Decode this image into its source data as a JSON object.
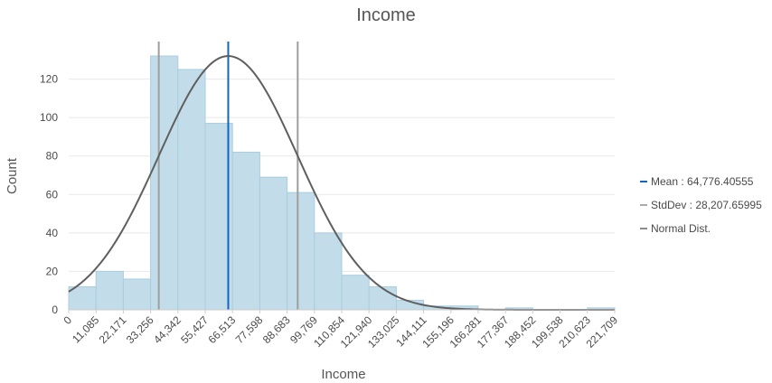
{
  "chart_data": {
    "type": "bar",
    "title": "Income",
    "xlabel": "Income",
    "ylabel": "Count",
    "xlim": [
      0,
      221709
    ],
    "ylim": [
      0,
      140
    ],
    "y_ticks": [
      0,
      20,
      40,
      60,
      80,
      100,
      120
    ],
    "x_tick_labels": [
      "0",
      "11,085",
      "22,171",
      "33,256",
      "44,342",
      "55,427",
      "66,513",
      "77,598",
      "88,683",
      "99,769",
      "110,854",
      "121,940",
      "133,025",
      "144,111",
      "155,196",
      "166,281",
      "177,367",
      "188,452",
      "199,538",
      "210,623",
      "221,709"
    ],
    "bin_width": 11085.45,
    "values": [
      12,
      20,
      16,
      132,
      125,
      97,
      82,
      69,
      61,
      40,
      18,
      12,
      5,
      2,
      2,
      0,
      1,
      0,
      0,
      1
    ],
    "mean": 64776.40555,
    "stddev": 28207.65995,
    "stddev_lines": [
      36568.7456,
      92984.0655
    ],
    "normal_peak": 132,
    "legend_position": "right",
    "grid": true,
    "legend": [
      {
        "label": "Mean : 64,776.40555",
        "color": "#1565c0"
      },
      {
        "label": "StdDev : 28,207.65995",
        "color": "#aaaaaa"
      },
      {
        "label": "Normal Dist.",
        "color": "#8a8a8a"
      }
    ],
    "colors": {
      "bar_fill": "#c2dde9",
      "bar_stroke": "#a9cde0",
      "mean": "#1565c0",
      "stddev": "#9e9e9e",
      "normal": "#5f5f5f",
      "grid": "#e8e8e8"
    }
  }
}
